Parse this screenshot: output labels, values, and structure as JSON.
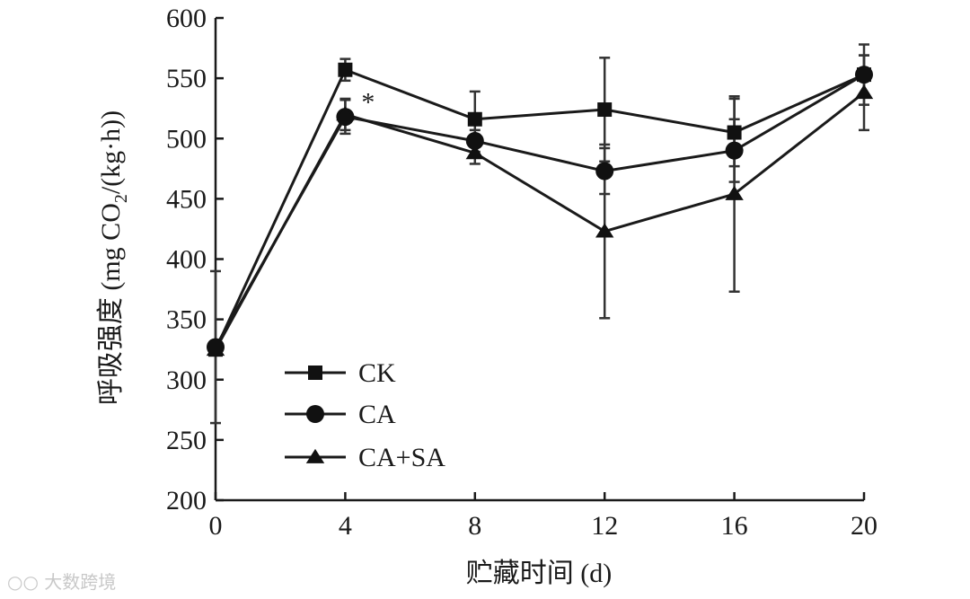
{
  "chart_data": {
    "type": "line",
    "ylabel": "呼吸强度 (mg CO2/(kg·h))",
    "ylabel_parts": {
      "main": "呼吸强度 (mg CO",
      "subscript": "2",
      "tail": "/(kg·h))"
    },
    "xlabel": "贮藏时间 (d)",
    "x": [
      0,
      4,
      8,
      12,
      16,
      20
    ],
    "xlim": [
      0,
      20
    ],
    "ylim": [
      200,
      600
    ],
    "yticks": [
      200,
      250,
      300,
      350,
      400,
      450,
      500,
      550,
      600
    ],
    "xticks": [
      0,
      4,
      8,
      12,
      16,
      20
    ],
    "legend_position": "bottom-left",
    "series": [
      {
        "name": "CK",
        "marker": "square",
        "values": [
          325,
          557,
          516,
          524,
          505,
          553
        ],
        "errors": [
          0,
          9,
          23,
          43,
          28,
          25
        ]
      },
      {
        "name": "CA",
        "marker": "circle",
        "values": [
          327,
          518,
          498,
          473,
          490,
          553
        ],
        "errors": [
          63,
          14,
          9,
          19,
          26,
          16
        ]
      },
      {
        "name": "CA+SA",
        "marker": "triangle",
        "values": [
          325,
          520,
          488,
          423,
          454,
          538
        ],
        "errors": [
          0,
          13,
          9,
          72,
          81,
          31
        ]
      }
    ],
    "annotations": [
      {
        "text": "*",
        "x": 4,
        "y": 520
      }
    ]
  },
  "watermark": "大数跨境"
}
